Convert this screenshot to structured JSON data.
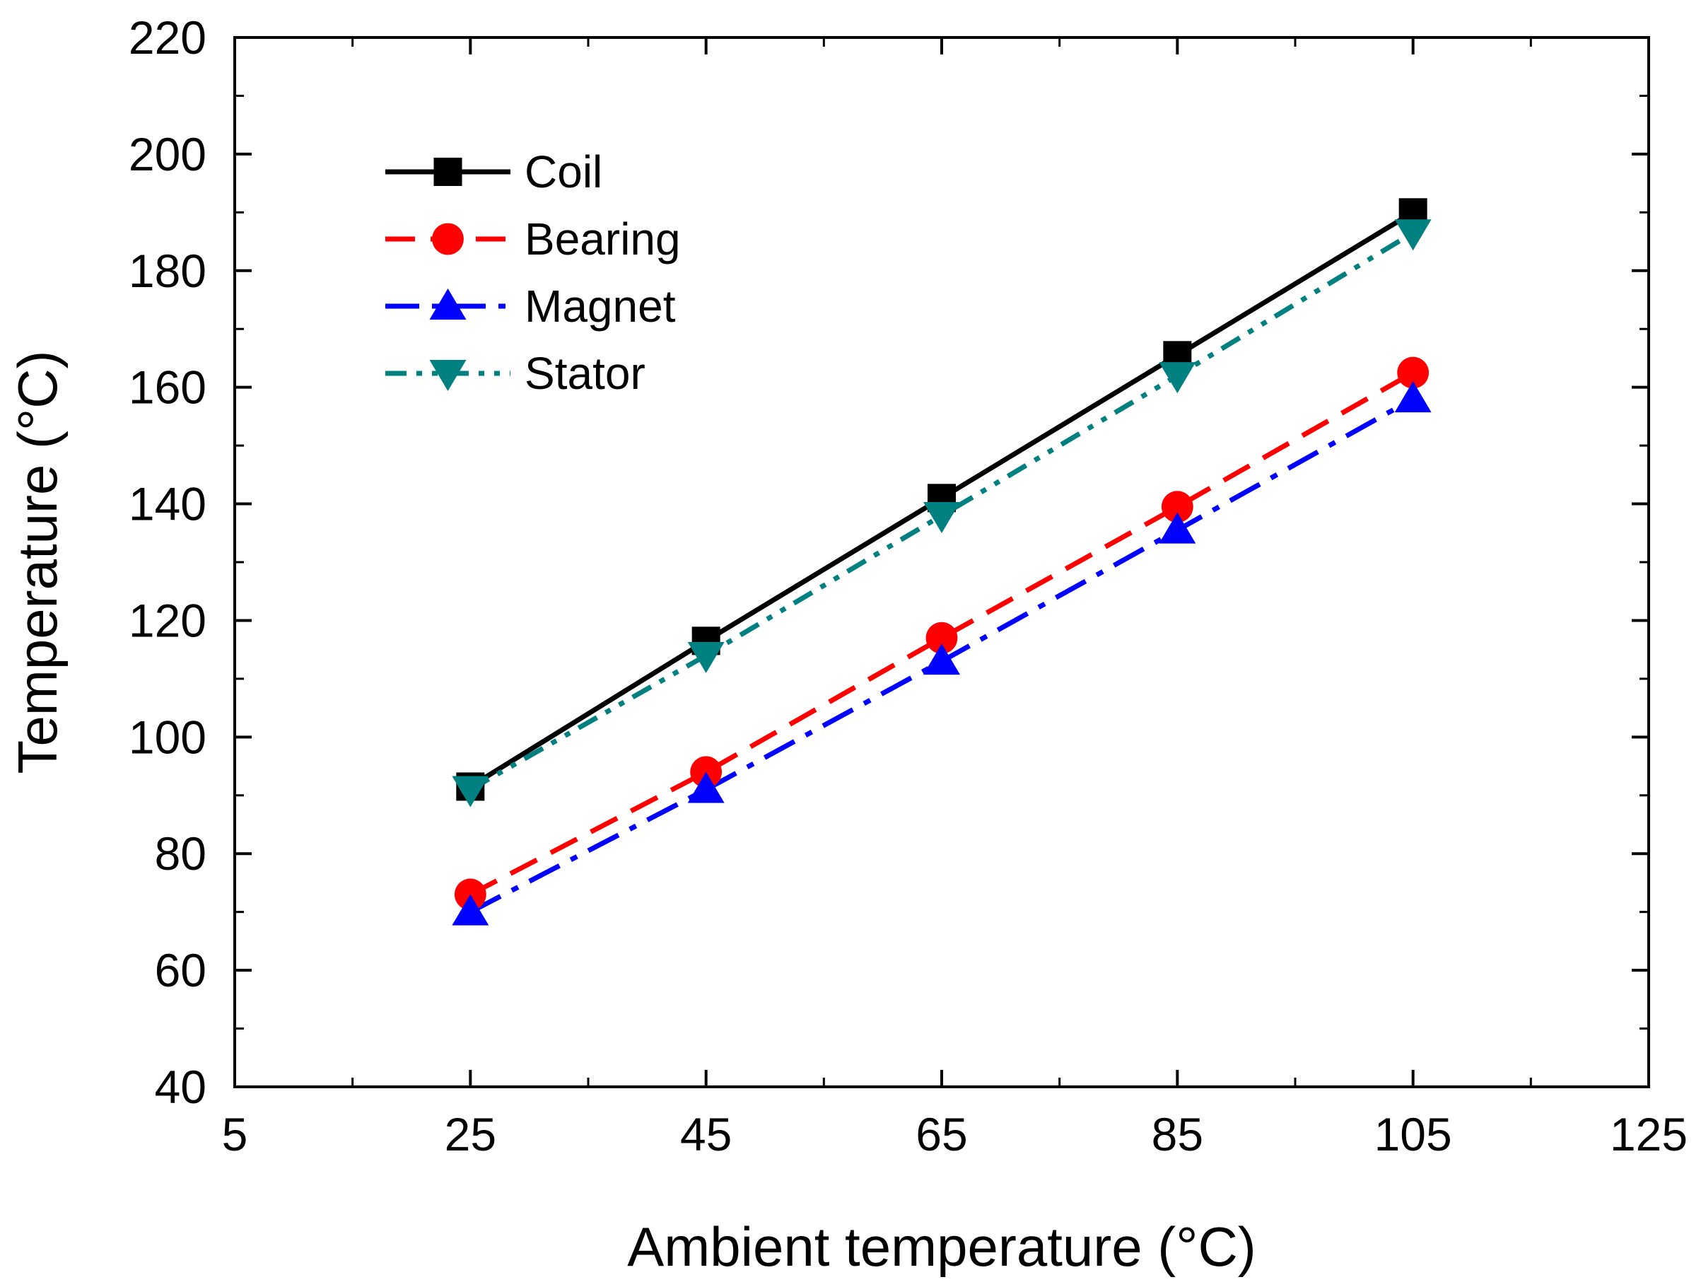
{
  "chart_data": {
    "type": "line",
    "title": "",
    "xlabel": "Ambient temperature (°C)",
    "ylabel": "Temperature (°C)",
    "xlim": [
      5,
      125
    ],
    "ylim": [
      40,
      220
    ],
    "xticks": [
      5,
      25,
      45,
      65,
      85,
      105,
      125
    ],
    "yticks": [
      40,
      60,
      80,
      100,
      120,
      140,
      160,
      180,
      200,
      220
    ],
    "x": [
      25,
      45,
      65,
      85,
      105
    ],
    "grid": false,
    "legend_position": "top-left",
    "series": [
      {
        "name": "Coil",
        "values": [
          91.5,
          116.5,
          141,
          165.5,
          190
        ],
        "color": "#000000",
        "marker": "square",
        "dash": "solid"
      },
      {
        "name": "Bearing",
        "values": [
          73,
          94,
          117,
          139.5,
          162.5
        ],
        "color": "#ff0000",
        "marker": "circle",
        "dash": "dash"
      },
      {
        "name": "Magnet",
        "values": [
          70,
          91,
          113,
          135.5,
          158
        ],
        "color": "#0000ff",
        "marker": "triangle-up",
        "dash": "dashdot"
      },
      {
        "name": "Stator",
        "values": [
          91,
          114,
          138,
          162,
          186.5
        ],
        "color": "#008080",
        "marker": "triangle-down",
        "dash": "dashdotdot"
      }
    ]
  }
}
